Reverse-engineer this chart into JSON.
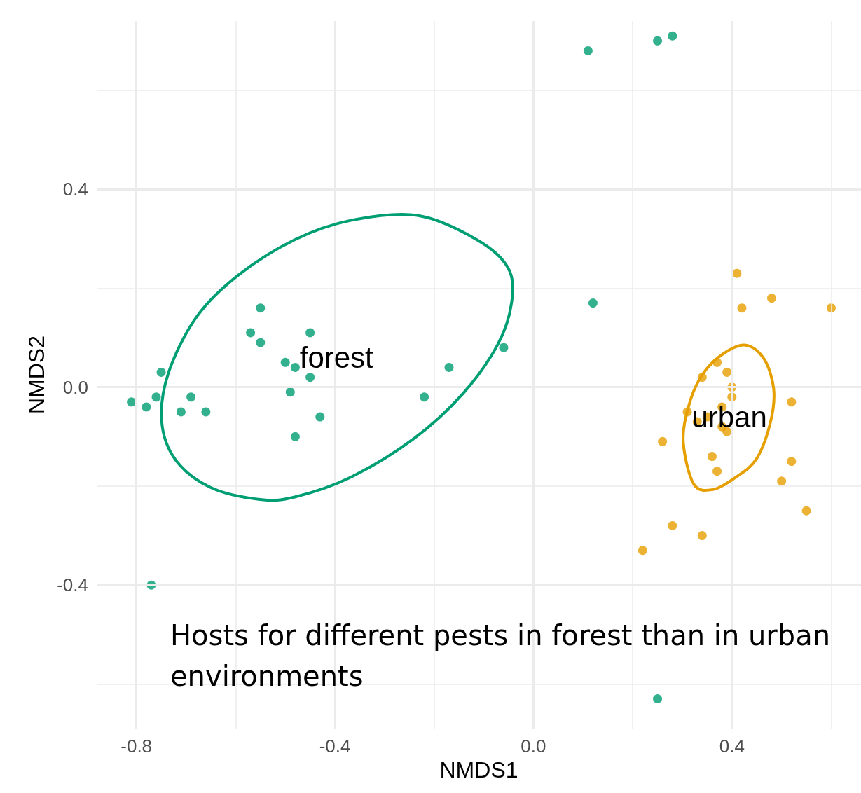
{
  "chart_data": {
    "type": "scatter",
    "xlabel": "NMDS1",
    "ylabel": "NMDS2",
    "xlim": [
      -0.88,
      0.66
    ],
    "ylim": [
      -0.69,
      0.74
    ],
    "xticks": [
      -0.8,
      {
        "value": -0.6,
        "label": null
      },
      -0.4,
      {
        "value": -0.2,
        "label": null
      },
      {
        "value": 0,
        "label": "0.0"
      },
      {
        "value": 0.2,
        "label": null
      },
      0.4,
      {
        "value": 0.6,
        "label": null
      }
    ],
    "yticks": [
      {
        "value": -0.6,
        "label": null
      },
      -0.4,
      {
        "value": -0.2,
        "label": null
      },
      {
        "value": 0,
        "label": "0.0"
      },
      {
        "value": 0.2,
        "label": null
      },
      0.4,
      {
        "value": 0.6,
        "label": null
      }
    ],
    "grid": true,
    "legend": false,
    "marker": "circle",
    "series": [
      {
        "name": "forest",
        "color": "#009e73",
        "x": [
          0.11,
          0.25,
          0.28,
          0.12,
          -0.06,
          -0.17,
          -0.22,
          -0.55,
          -0.57,
          -0.55,
          -0.45,
          -0.5,
          -0.48,
          -0.45,
          -0.49,
          -0.43,
          -0.48,
          -0.75,
          -0.81,
          -0.78,
          -0.76,
          -0.71,
          -0.69,
          -0.66,
          -0.77,
          0.25
        ],
        "values": [
          0.68,
          0.7,
          0.71,
          0.17,
          0.08,
          0.04,
          -0.02,
          0.16,
          0.11,
          0.09,
          0.11,
          0.05,
          0.04,
          0.02,
          -0.01,
          -0.06,
          -0.1,
          0.03,
          -0.03,
          -0.04,
          -0.02,
          -0.05,
          -0.02,
          -0.05,
          -0.4,
          -0.63
        ]
      },
      {
        "name": "urban",
        "color": "#e69f00",
        "x": [
          0.41,
          0.48,
          0.42,
          0.6,
          0.37,
          0.34,
          0.39,
          0.4,
          0.4,
          0.38,
          0.31,
          0.52,
          0.33,
          0.35,
          0.38,
          0.39,
          0.26,
          0.36,
          0.52,
          0.37,
          0.5,
          0.55,
          0.28,
          0.34,
          0.22
        ],
        "values": [
          0.23,
          0.18,
          0.16,
          0.16,
          0.05,
          0.02,
          0.03,
          0.0,
          -0.02,
          -0.04,
          -0.05,
          -0.03,
          -0.07,
          -0.06,
          -0.08,
          -0.09,
          -0.11,
          -0.14,
          -0.15,
          -0.17,
          -0.19,
          -0.25,
          -0.28,
          -0.3,
          -0.33
        ]
      }
    ],
    "annotations": [
      "Hosts for different pests in forest than in urban environments"
    ]
  }
}
